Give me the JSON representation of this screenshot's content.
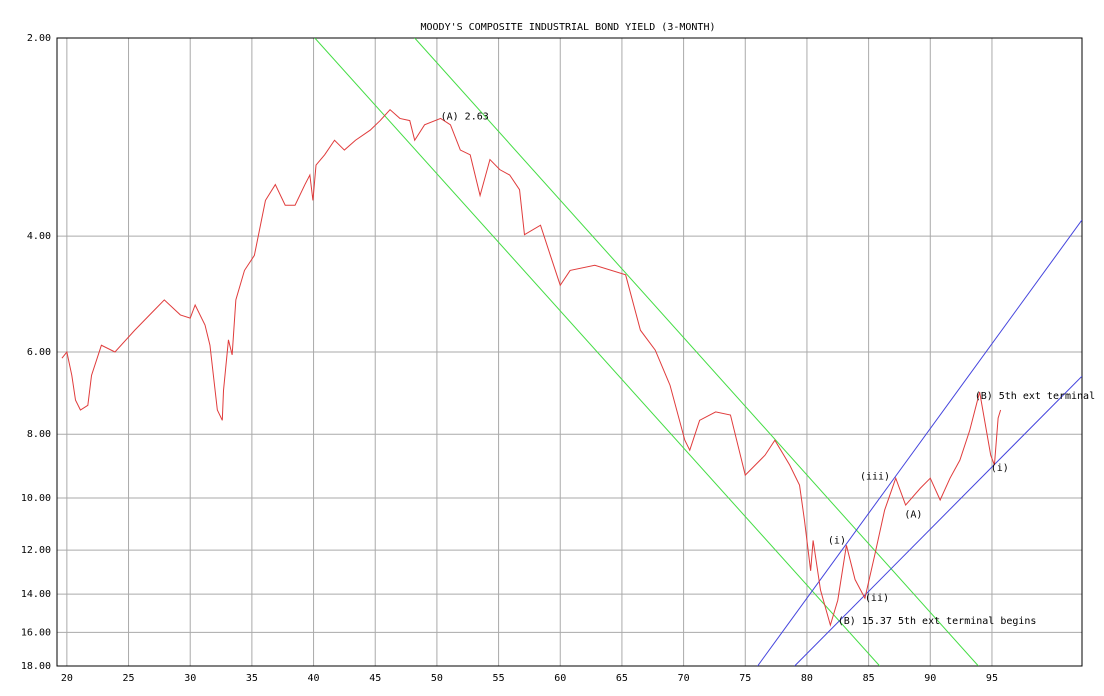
{
  "chart_data": {
    "type": "line",
    "title": "MOODY'S COMPOSITE INDUSTRIAL BOND YIELD (3-MONTH)",
    "y_scale": "log",
    "y_inverted": true,
    "grid": true,
    "xlim": [
      19.2,
      102.3
    ],
    "xticks": [
      20,
      25,
      30,
      35,
      40,
      45,
      50,
      55,
      60,
      65,
      70,
      75,
      80,
      85,
      90,
      95
    ],
    "ylim": [
      2,
      18
    ],
    "yticks": [
      {
        "value": 2,
        "label": "2.00"
      },
      {
        "value": 4,
        "label": "4.00"
      },
      {
        "value": 6,
        "label": "6.00"
      },
      {
        "value": 8,
        "label": "8.00"
      },
      {
        "value": 10,
        "label": "10.00"
      },
      {
        "value": 12,
        "label": "12.00"
      },
      {
        "value": 14,
        "label": "14.00"
      },
      {
        "value": 16,
        "label": "16.00"
      },
      {
        "value": 18,
        "label": "18.00"
      }
    ],
    "series": [
      {
        "color": "#e03c3c",
        "x": [
          19.6,
          20.0,
          20.4,
          20.7,
          21.1,
          21.7,
          22.0,
          22.8,
          23.9,
          25.5,
          27.1,
          27.9,
          29.2,
          30.0,
          30.4,
          31.2,
          31.6,
          32.2,
          32.6,
          32.7,
          33.1,
          33.4,
          33.7,
          34.4,
          35.2,
          36.1,
          36.9,
          37.7,
          38.5,
          39.3,
          39.7,
          39.95,
          40.2,
          40.9,
          41.7,
          42.5,
          43.4,
          44.6,
          45.4,
          46.2,
          47.0,
          47.8,
          48.2,
          49.0,
          50.3,
          51.1,
          51.9,
          52.7,
          53.5,
          54.3,
          55.1,
          55.9,
          56.7,
          57.1,
          58.4,
          59.2,
          60.0,
          60.8,
          62.8,
          65.3,
          66.5,
          67.7,
          68.9,
          70.1,
          70.5,
          71.3,
          72.6,
          73.8,
          75.0,
          76.6,
          77.4,
          78.6,
          79.4,
          79.8,
          80.3,
          80.5,
          81.1,
          81.9,
          82.5,
          83.2,
          83.9,
          84.7,
          85.5,
          86.3,
          87.2,
          88.0,
          89.2,
          90.0,
          90.8,
          91.6,
          92.4,
          93.2,
          94.0,
          94.9,
          95.2,
          95.5,
          95.7
        ],
        "values": [
          6.13,
          6.0,
          6.51,
          7.1,
          7.35,
          7.23,
          6.51,
          5.86,
          6.0,
          5.56,
          5.18,
          5.0,
          5.27,
          5.33,
          5.09,
          5.46,
          5.86,
          7.35,
          7.62,
          6.86,
          5.75,
          6.06,
          5.0,
          4.51,
          4.28,
          3.53,
          3.34,
          3.59,
          3.59,
          3.34,
          3.23,
          3.53,
          3.12,
          3.01,
          2.86,
          2.96,
          2.86,
          2.76,
          2.67,
          2.57,
          2.65,
          2.67,
          2.86,
          2.71,
          2.65,
          2.71,
          2.96,
          3.01,
          3.47,
          3.06,
          3.17,
          3.23,
          3.4,
          3.98,
          3.85,
          4.28,
          4.75,
          4.51,
          4.43,
          4.58,
          5.56,
          5.96,
          6.74,
          8.17,
          8.46,
          7.62,
          7.4,
          7.48,
          9.23,
          8.61,
          8.17,
          8.91,
          9.56,
          10.81,
          12.9,
          11.6,
          13.8,
          15.6,
          14.3,
          11.8,
          13.3,
          14.2,
          12.2,
          10.43,
          9.33,
          10.25,
          9.66,
          9.33,
          10.07,
          9.33,
          8.76,
          7.89,
          6.9,
          8.61,
          8.91,
          7.56,
          7.35
        ]
      }
    ],
    "channels": [
      {
        "color": "#44dd44",
        "x": [
          48.2,
          93.9
        ],
        "y": [
          2,
          18
        ]
      },
      {
        "color": "#44dd44",
        "x": [
          40.1,
          85.9
        ],
        "y": [
          2,
          18
        ]
      },
      {
        "color": "#4444dd",
        "x": [
          76.0,
          102.3
        ],
        "y": [
          18,
          3.78
        ]
      },
      {
        "color": "#4444dd",
        "x": [
          79.0,
          102.3
        ],
        "y": [
          18,
          6.53
        ]
      }
    ],
    "annotations": [
      {
        "text": "(A) 2.63",
        "x": 50.3,
        "y": 2.63
      },
      {
        "text": "(B) 15.37  5th ext terminal begins",
        "x": 82.5,
        "y": 15.37
      },
      {
        "text": "(i)",
        "x": 81.7,
        "y": 11.6
      },
      {
        "text": "(ii)",
        "x": 84.7,
        "y": 14.2
      },
      {
        "text": "(iii)",
        "x": 84.3,
        "y": 9.27
      },
      {
        "text": "(A)",
        "x": 87.9,
        "y": 10.6
      },
      {
        "text": "(B)  5th ext terminal",
        "x": 93.6,
        "y": 7.0
      },
      {
        "text": "(i)",
        "x": 94.9,
        "y": 9.0
      }
    ]
  }
}
